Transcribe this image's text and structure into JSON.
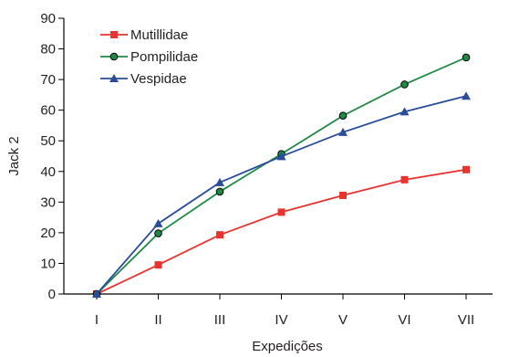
{
  "chart_data": {
    "type": "line",
    "xlabel": "Expedições",
    "ylabel": "Jack 2",
    "ylim": [
      0,
      90
    ],
    "yticks": [
      0,
      10,
      20,
      30,
      40,
      50,
      60,
      70,
      80,
      90
    ],
    "categories": [
      "I",
      "II",
      "III",
      "IV",
      "V",
      "VI",
      "VII"
    ],
    "grid": false,
    "legend_position": "top-left",
    "series": [
      {
        "name": "Mutillidae",
        "color": "#e8332f",
        "marker": "square",
        "values": [
          0,
          9.5,
          19.3,
          26.7,
          32.2,
          37.3,
          40.6
        ]
      },
      {
        "name": "Pompilidae",
        "color": "#1f8a45",
        "marker": "circle",
        "values": [
          0,
          19.8,
          33.4,
          45.7,
          58.2,
          68.4,
          77.2
        ]
      },
      {
        "name": "Vespidae",
        "color": "#2a4d9a",
        "marker": "triangle",
        "values": [
          0,
          23.0,
          36.4,
          44.9,
          52.8,
          59.5,
          64.6
        ]
      }
    ]
  }
}
